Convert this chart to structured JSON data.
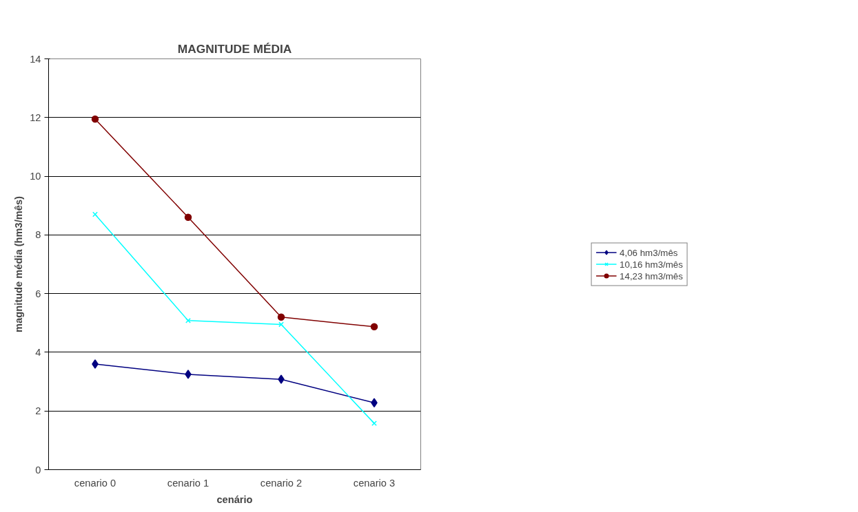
{
  "chart_data": {
    "type": "line",
    "title": "MAGNITUDE MÉDIA",
    "xlabel": "cenário",
    "ylabel": "magnitude média (hm3/mês)",
    "categories": [
      "cenario 0",
      "cenario 1",
      "cenario 2",
      "cenario 3"
    ],
    "ylim": [
      0,
      14
    ],
    "yticks": [
      0,
      2,
      4,
      6,
      8,
      10,
      12,
      14
    ],
    "grid": "y",
    "legend": "right",
    "series": [
      {
        "name": "4,06 hm3/mês",
        "color": "#000080",
        "marker": "diamond",
        "values": [
          3.6,
          3.25,
          3.08,
          2.28
        ]
      },
      {
        "name": "10,16 hm3/mês",
        "color": "#00ffff",
        "marker": "cross",
        "values": [
          8.7,
          5.08,
          4.95,
          1.58
        ]
      },
      {
        "name": "14,23 hm3/mês",
        "color": "#800000",
        "marker": "circle",
        "values": [
          11.95,
          8.6,
          5.2,
          4.87
        ]
      }
    ]
  }
}
